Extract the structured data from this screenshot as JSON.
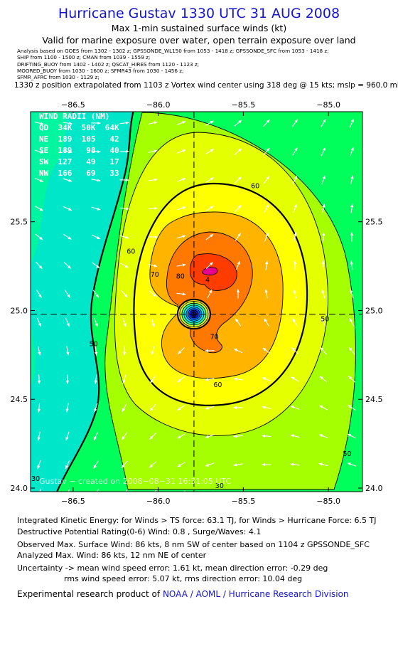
{
  "header": {
    "title": "Hurricane Gustav 1330 UTC 31 AUG 2008",
    "subtitle": "Max 1-min sustained surface winds (kt)",
    "validity": "Valid for marine exposure over water, open terrain exposure over land",
    "sources": [
      "Analysis based on   GOES from 1302 - 1302 z;  GPSSONDE_WL150 from 1053 - 1418 z;  GPSSONDE_SFC from 1053 - 1418 z;",
      "SHIP from 1100 - 1500 z;  CMAN from 1039 - 1559 z;",
      "DRIFTING_BUOY from 1402 - 1402 z;  QSCAT_HIRES from 1120 - 1123 z;",
      "MOORED_BUOY from 1030 - 1600 z;  SFMR43 from 1030 - 1456 z;",
      "SFMR_AFRC from 1030 - 1129 z;"
    ],
    "position_note": "1330 z position extrapolated from 1103 z Vortex wind center using 318 deg @ 15 kts; mslp = 960.0 mb"
  },
  "chart_data": {
    "type": "heatmap",
    "xlim": [
      -86.75,
      -84.8
    ],
    "ylim": [
      23.98,
      26.12
    ],
    "xticks": [
      -86.5,
      -86.0,
      -85.5,
      -85.0
    ],
    "xtick_labels": [
      "−86.5",
      "−86.0",
      "−85.5",
      "−85.0"
    ],
    "yticks": [
      24.0,
      24.5,
      25.0,
      25.5
    ],
    "ytick_labels": [
      "24.0",
      "24.5",
      "25.0",
      "25.5"
    ],
    "center": {
      "lon": -85.79,
      "lat": 24.98
    },
    "max_wind": {
      "lon": -85.71,
      "lat": 25.16,
      "value": 86
    },
    "levels": [
      30,
      40,
      50,
      60,
      70,
      80,
      90
    ],
    "fill_colors": [
      "#00e6c8",
      "#00f5a0",
      "#00ff5a",
      "#a6ff00",
      "#e4ff00",
      "#ffff00",
      "#ffb400",
      "#ff7800",
      "#ff3c00",
      "#e60090"
    ],
    "contour_labels": [
      {
        "text": "60",
        "lon": -85.43,
        "lat": 25.69
      },
      {
        "text": "60",
        "lon": -86.16,
        "lat": 25.32
      },
      {
        "text": "70",
        "lon": -86.02,
        "lat": 25.19
      },
      {
        "text": "80",
        "lon": -85.87,
        "lat": 25.18
      },
      {
        "text": "70",
        "lon": -85.67,
        "lat": 24.84
      },
      {
        "text": "60",
        "lon": -85.65,
        "lat": 24.57
      },
      {
        "text": "50",
        "lon": -86.38,
        "lat": 24.8
      },
      {
        "text": "50",
        "lon": -85.02,
        "lat": 24.94
      },
      {
        "text": "50",
        "lon": -84.89,
        "lat": 24.18
      },
      {
        "text": "30",
        "lon": -85.64,
        "lat": 24.0
      },
      {
        "text": "30",
        "lon": -86.72,
        "lat": 24.04
      },
      {
        "text": "4",
        "lon": -85.71,
        "lat": 25.16
      }
    ],
    "wind_radii": {
      "title": "WIND RADII (NM)",
      "header": "QD  34K  50K  64K",
      "rows": [
        "NE  189  105   42",
        "SE  189   98   40",
        "SW  127   49   17",
        "NW  166   69   33"
      ]
    },
    "watermark": "Gustav − created on 2008−08−31 16:31:05 UTC"
  },
  "footer": {
    "ike": "Integrated Kinetic Energy:  for Winds > TS force: 63.1 TJ,  for Winds > Hurricane Force: 6.5 TJ",
    "dpr": "Destructive Potential Rating(0-6)   Wind: 0.8 , Surge/Waves: 4.1",
    "observed": "Observed Max. Surface Wind: 86 kts, 8 nm SW of center based on 1104 z GPSSONDE_SFC",
    "analyzed": "Analyzed Max. Wind: 86 kts, 12 nm NE of center",
    "uncertainty1": "Uncertainty -> mean wind speed error: 1.61 kt,   mean direction error:  -0.29 deg",
    "uncertainty2": "rms wind speed error: 5.07 kt,   rms direction error: 10.04 deg",
    "credit_prefix": "Experimental research product of",
    "credit_org": "NOAA / AOML / Hurricane Research Division"
  }
}
